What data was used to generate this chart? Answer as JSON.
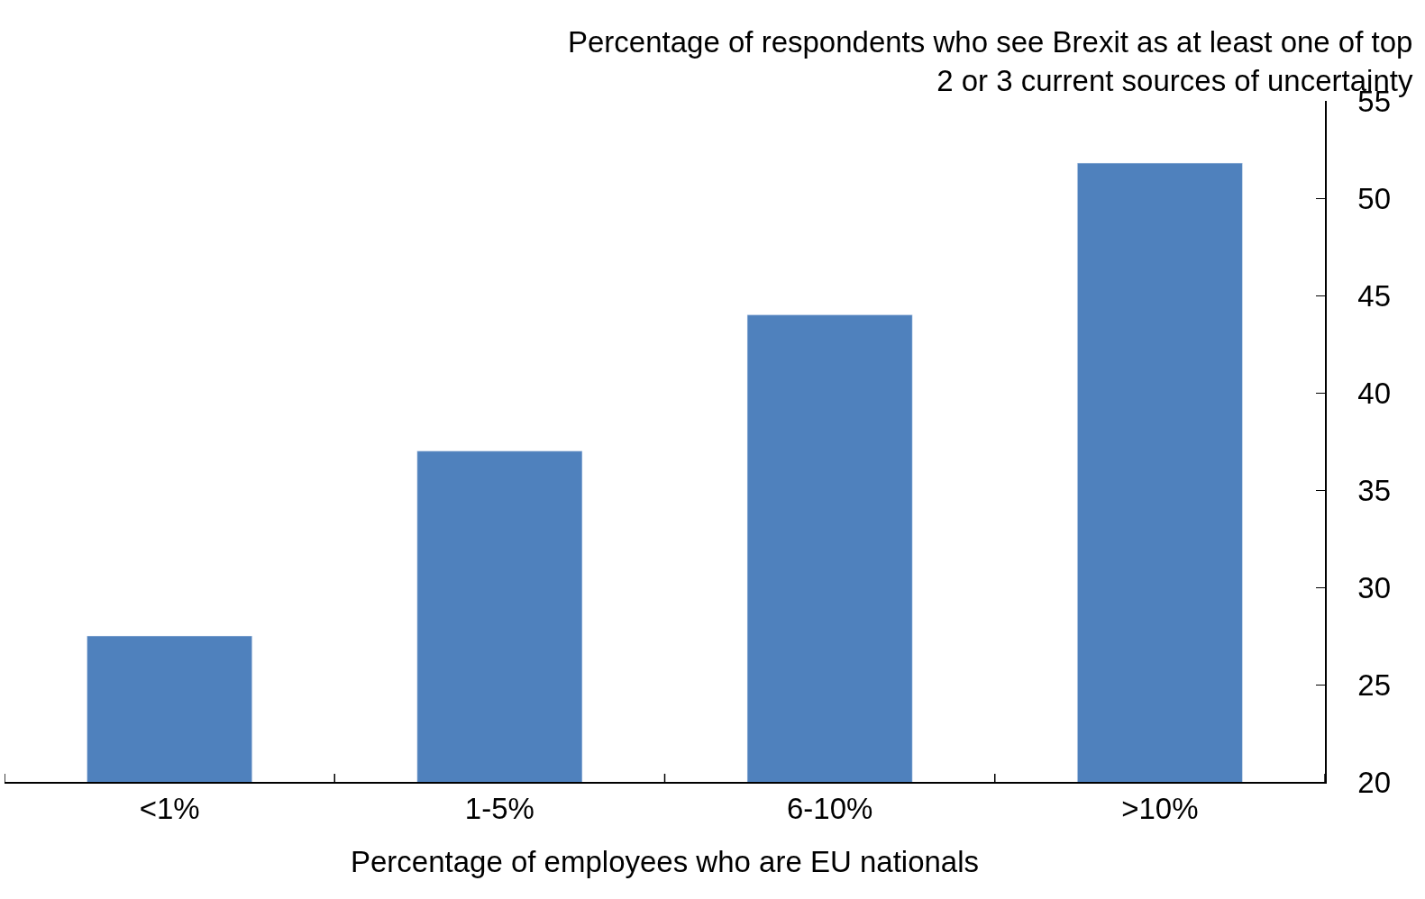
{
  "chart_data": {
    "type": "bar",
    "ylabel": "Percentage of respondents who see Brexit as at least one of top\n2 or 3 current sources of uncertainty",
    "xlabel": "Percentage of employees who are EU nationals",
    "categories": [
      "<1%",
      "1-5%",
      "6-10%",
      ">10%"
    ],
    "values": [
      27.5,
      37,
      44,
      51.8
    ],
    "color": "#4f81bd",
    "ylim": [
      20,
      55
    ],
    "yticks": [
      20,
      25,
      30,
      35,
      40,
      45,
      50,
      55
    ],
    "legend": false
  }
}
